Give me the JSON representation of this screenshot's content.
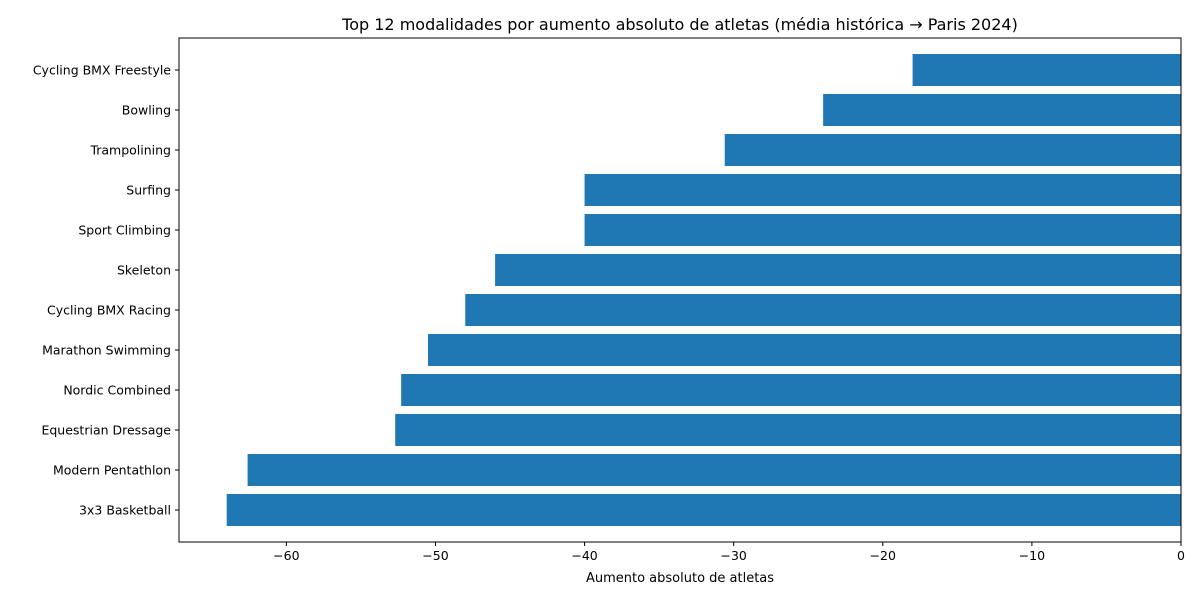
{
  "chart_data": {
    "type": "bar",
    "orientation": "horizontal",
    "title": "Top 12 modalidades por aumento absoluto de atletas (média histórica → Paris 2024)",
    "xlabel": "Aumento absoluto de atletas",
    "ylabel": "",
    "xlim": [
      -67.2,
      0
    ],
    "x_ticks": [
      -60,
      -50,
      -40,
      -30,
      -20,
      -10,
      0
    ],
    "x_tick_labels": [
      "−60",
      "−50",
      "−40",
      "−30",
      "−20",
      "−10",
      "0"
    ],
    "grid": false,
    "bar_color": "#1f77b4",
    "categories": [
      "Cycling BMX Freestyle",
      "Bowling",
      "Trampolining",
      "Surfing",
      "Sport Climbing",
      "Skeleton",
      "Cycling BMX Racing",
      "Marathon Swimming",
      "Nordic Combined",
      "Equestrian Dressage",
      "Modern Pentathlon",
      "3x3 Basketball"
    ],
    "values": [
      -18.0,
      -24.0,
      -30.6,
      -40.0,
      -40.0,
      -46.0,
      -48.0,
      -50.5,
      -52.3,
      -52.7,
      -62.6,
      -64.0
    ]
  }
}
